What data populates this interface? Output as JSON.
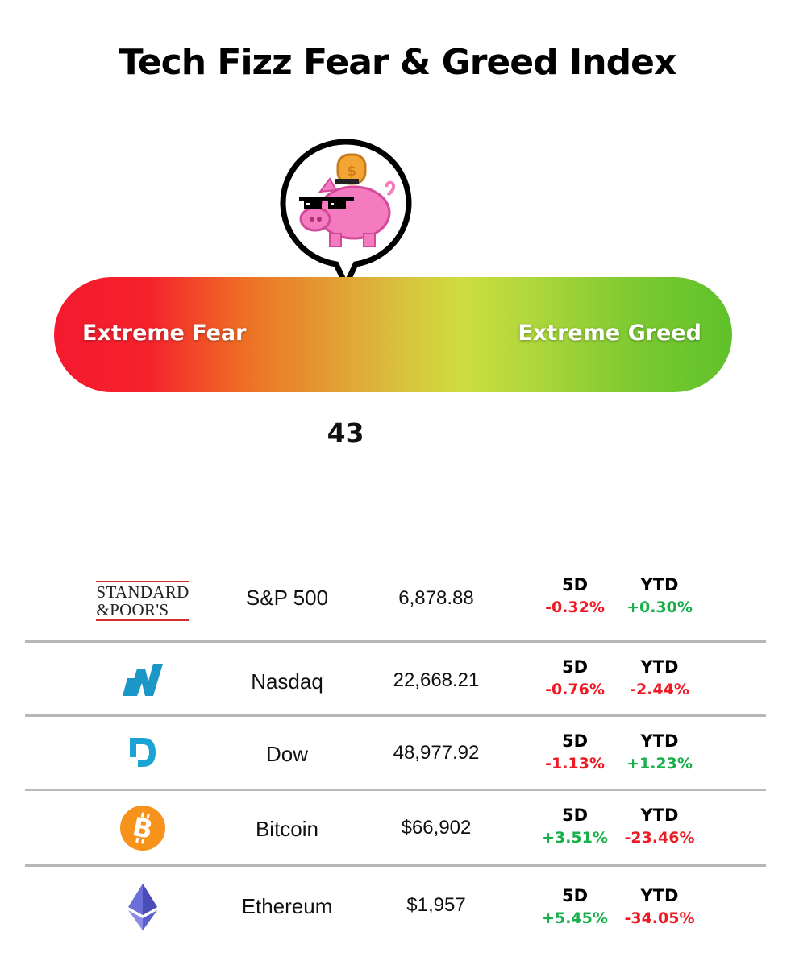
{
  "title": "Tech Fizz Fear & Greed Index",
  "gauge": {
    "left_label": "Extreme Fear",
    "right_label": "Extreme Greed",
    "value": "43",
    "scale_min": 0,
    "scale_max": 100,
    "mascot": "piggy-bank-with-sunglasses-icon"
  },
  "colors": {
    "fear": "#f5192e",
    "neutral": "#d8c43e",
    "greed": "#5fc12a",
    "negative": "#ee1b24",
    "positive": "#19b04b",
    "nasdaq": "#1a97c7",
    "dow": "#1aa3d4",
    "bitcoin": "#f7931a",
    "ethereum": "#6b6ed8"
  },
  "markets": [
    {
      "logo": "standard-and-poors-logo",
      "logo_line1": "STANDARD",
      "logo_line2": "&POOR'S",
      "name": "S&P 500",
      "price": "6,878.88",
      "h5d": "5D",
      "v5d": "-0.32%",
      "hytd": "YTD",
      "vytd": "+0.30%"
    },
    {
      "logo": "nasdaq-logo",
      "name": "Nasdaq",
      "price": "22,668.21",
      "h5d": "5D",
      "v5d": "-0.76%",
      "hytd": "YTD",
      "vytd": "-2.44%"
    },
    {
      "logo": "dow-logo",
      "name": "Dow",
      "price": "48,977.92",
      "h5d": "5D",
      "v5d": "-1.13%",
      "hytd": "YTD",
      "vytd": "+1.23%"
    },
    {
      "logo": "bitcoin-logo",
      "name": "Bitcoin",
      "price": "$66,902",
      "h5d": "5D",
      "v5d": "+3.51%",
      "hytd": "YTD",
      "vytd": "-23.46%"
    },
    {
      "logo": "ethereum-logo",
      "name": "Ethereum",
      "price": "$1,957",
      "h5d": "5D",
      "v5d": "+5.45%",
      "hytd": "YTD",
      "vytd": "-34.05%"
    }
  ]
}
